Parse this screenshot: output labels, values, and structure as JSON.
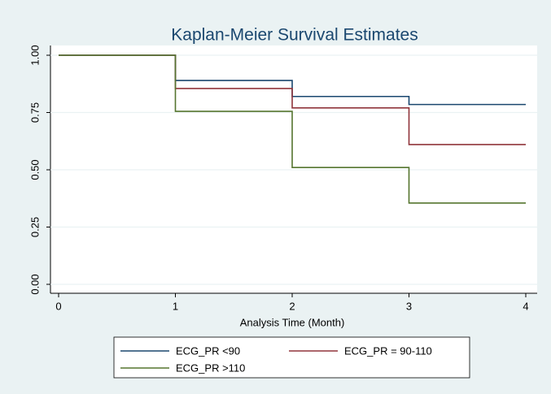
{
  "chart_data": {
    "type": "step",
    "title": "Kaplan-Meier Survival Estimates",
    "x_label": "Analysis Time (Month)",
    "x": [
      0,
      1,
      2,
      3,
      4
    ],
    "series": [
      {
        "name": "ECG_PR <90",
        "color": "#1a476f",
        "values": [
          1.0,
          0.89,
          0.82,
          0.785,
          0.785
        ]
      },
      {
        "name": "ECG_PR = 90-110",
        "color": "#90353b",
        "values": [
          1.0,
          0.855,
          0.77,
          0.61,
          0.61
        ]
      },
      {
        "name": "ECG_PR >110",
        "color": "#55752f",
        "values": [
          1.0,
          0.755,
          0.51,
          0.355,
          0.355
        ]
      }
    ],
    "xlim": [
      0,
      4
    ],
    "xticks": [
      0,
      1,
      2,
      3,
      4
    ],
    "ylim": [
      0,
      1
    ],
    "yticks": [
      {
        "value": 0,
        "label": "0.00"
      },
      {
        "value": 0.25,
        "label": "0.25"
      },
      {
        "value": 0.5,
        "label": "0.50"
      },
      {
        "value": 0.75,
        "label": "0.75"
      },
      {
        "value": 1,
        "label": "1.00"
      }
    ],
    "grid": true,
    "legend": "bottom"
  }
}
